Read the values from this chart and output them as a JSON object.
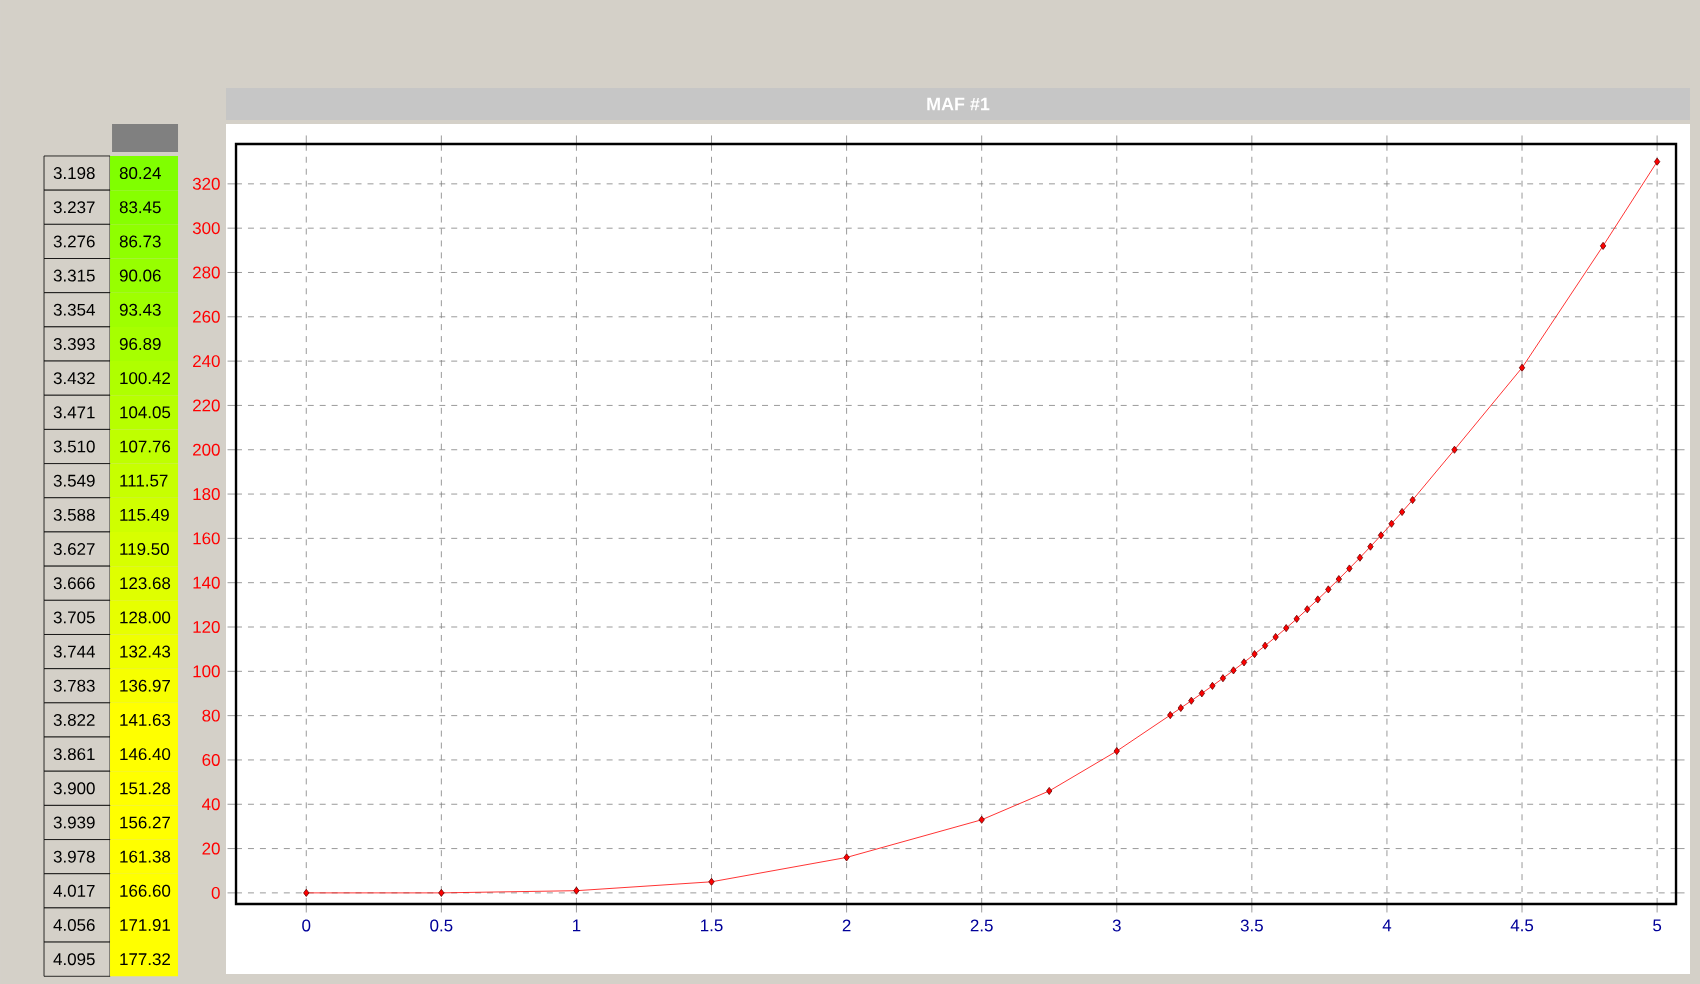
{
  "chart_data": {
    "type": "line",
    "title": "MAF #1",
    "series": [
      {
        "color": "#ff0000",
        "x": [
          0,
          0.5,
          1,
          1.5,
          2,
          2.5,
          2.75,
          3,
          3.198,
          3.237,
          3.276,
          3.315,
          3.354,
          3.393,
          3.432,
          3.471,
          3.51,
          3.549,
          3.588,
          3.627,
          3.666,
          3.705,
          3.744,
          3.783,
          3.822,
          3.861,
          3.9,
          3.939,
          3.978,
          4.017,
          4.056,
          4.095,
          4.25,
          4.5,
          4.8,
          5
        ],
        "values": [
          0,
          0,
          1,
          5,
          16,
          33,
          46,
          64,
          80.24,
          83.45,
          86.73,
          90.06,
          93.43,
          96.89,
          100.42,
          104.05,
          107.76,
          111.57,
          115.49,
          119.5,
          123.68,
          128.0,
          132.43,
          136.97,
          141.63,
          146.4,
          151.28,
          156.27,
          161.38,
          166.6,
          171.91,
          177.32,
          200,
          237,
          292,
          330
        ]
      }
    ],
    "annotations": [
      "3.198",
      "80.24",
      "3.237",
      "83.45",
      "3.276",
      "86.73",
      "3.315",
      "90.06",
      "3.354",
      "93.43",
      "3.393",
      "96.89",
      "3.432",
      "100.42",
      "3.471",
      "104.05",
      "3.510",
      "107.76",
      "3.549",
      "111.57",
      "3.588",
      "115.49",
      "3.627",
      "119.50",
      "3.666",
      "123.68",
      "3.705",
      "128.00",
      "3.744",
      "132.43",
      "3.783",
      "136.97",
      "3.822",
      "141.63",
      "3.861",
      "146.40",
      "3.900",
      "151.28",
      "3.939",
      "156.27",
      "3.978",
      "161.38",
      "4.017",
      "166.60",
      "4.056",
      "171.91",
      "4.095",
      "177.32"
    ],
    "xlim": [
      -0.26,
      5.07
    ],
    "ylim": [
      -5,
      338
    ],
    "xticks": [
      0,
      0.5,
      1,
      1.5,
      2,
      2.5,
      3,
      3.5,
      4,
      4.5,
      5
    ],
    "yticks": [
      0,
      20,
      40,
      60,
      80,
      100,
      120,
      140,
      160,
      180,
      200,
      220,
      240,
      260,
      280,
      300,
      320
    ],
    "grid": true,
    "marker": "diamond",
    "line_style": "solid"
  }
}
